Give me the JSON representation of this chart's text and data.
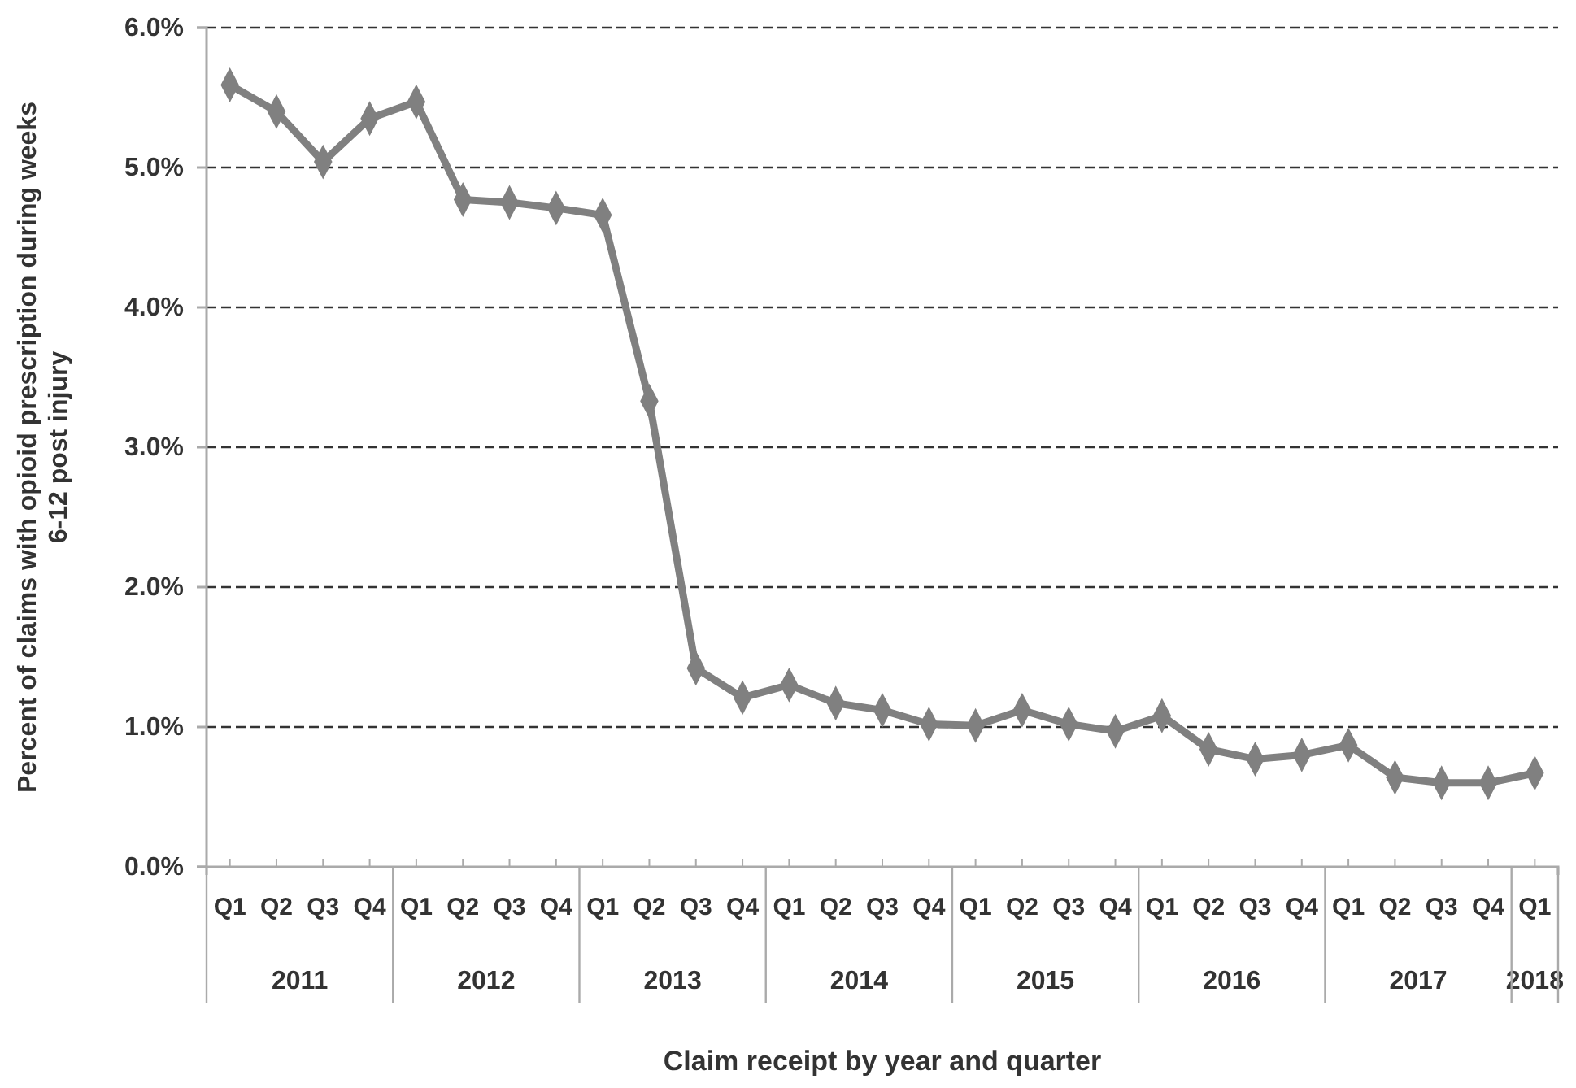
{
  "chart_data": {
    "type": "line",
    "xlabel": "Claim receipt by year and quarter",
    "ylabel": "Percent of claims with opioid prescription during weeks 6-12 post injury",
    "categories": [
      "Q1",
      "Q2",
      "Q3",
      "Q4",
      "Q1",
      "Q2",
      "Q3",
      "Q4",
      "Q1",
      "Q2",
      "Q3",
      "Q4",
      "Q1",
      "Q2",
      "Q3",
      "Q4",
      "Q1",
      "Q2",
      "Q3",
      "Q4",
      "Q1",
      "Q2",
      "Q3",
      "Q4",
      "Q1",
      "Q2",
      "Q3",
      "Q4",
      "Q1"
    ],
    "series": [
      {
        "color": "#808080",
        "values": [
          5.59,
          5.4,
          5.04,
          5.35,
          5.47,
          4.77,
          4.75,
          4.71,
          4.66,
          3.33,
          1.42,
          1.21,
          1.3,
          1.17,
          1.12,
          1.02,
          1.01,
          1.12,
          1.02,
          0.97,
          1.08,
          0.84,
          0.77,
          0.8,
          0.87,
          0.64,
          0.6,
          0.6,
          0.67
        ]
      }
    ],
    "annotations": [
      "2011",
      "2012",
      "2013",
      "2014",
      "2015",
      "2016",
      "2017",
      "2018"
    ],
    "ylim": [
      0,
      6
    ],
    "yticks": [
      {
        "value": 0,
        "label": "0.0%"
      },
      {
        "value": 1,
        "label": "1.0%"
      },
      {
        "value": 2,
        "label": "2.0%"
      },
      {
        "value": 3,
        "label": "3.0%"
      },
      {
        "value": 4,
        "label": "4.0%"
      },
      {
        "value": 5,
        "label": "5.0%"
      },
      {
        "value": 6,
        "label": "6.0%"
      }
    ],
    "grid": "y",
    "marker": "diamond",
    "line_style": "solid"
  }
}
